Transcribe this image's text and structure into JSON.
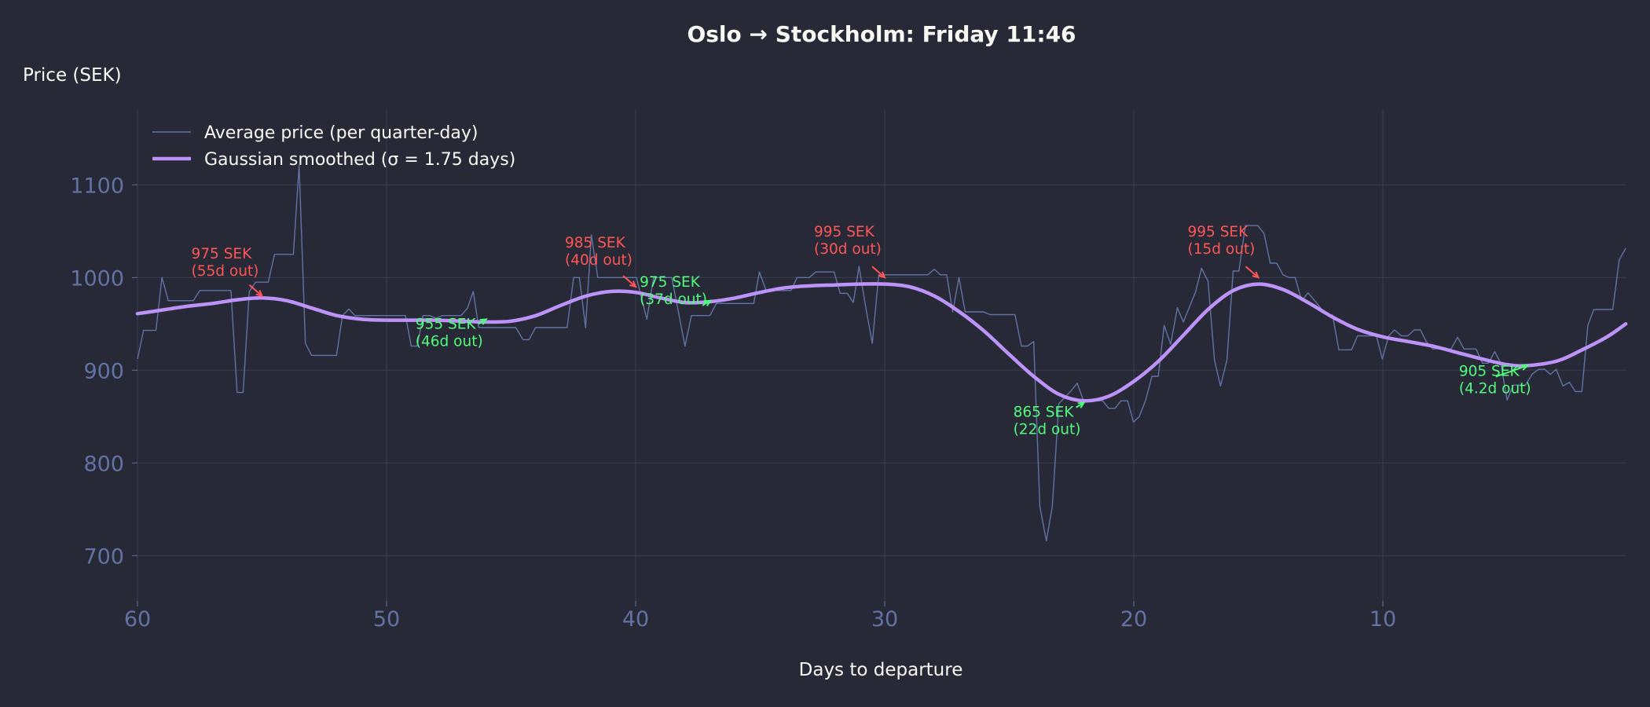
{
  "chart_data": {
    "type": "line",
    "title": "Oslo → Stockholm: Friday 11:46",
    "xlabel": "Days to departure",
    "ylabel": "Price (SEK)",
    "xlim": [
      60,
      0.25
    ],
    "ylim": [
      651,
      1181
    ],
    "x_inverted": true,
    "grid": true,
    "legend_position": "top-left",
    "xticks": [
      60,
      50,
      40,
      30,
      20,
      10
    ],
    "xtick_labels": [
      "60",
      "50",
      "40",
      "30",
      "20",
      "10"
    ],
    "yticks": [
      700,
      800,
      900,
      1000,
      1100
    ],
    "ytick_labels": [
      "700",
      "800",
      "900",
      "1000",
      "1100"
    ],
    "colors": {
      "background": "#272a36",
      "raw": "#6272a4",
      "smoothed": "#bd93f9",
      "peak": "#ff5555",
      "trough": "#50fa7b",
      "text": "#f8f8f2",
      "tick": "#6272a4",
      "grid": "#383c50"
    },
    "series": [
      {
        "name": "Average price (per quarter-day)",
        "legend_label": "Average price (per quarter-day)",
        "points": [
          [
            60.0,
            912
          ],
          [
            59.76,
            943
          ],
          [
            59.26,
            943
          ],
          [
            59.02,
            1000
          ],
          [
            58.76,
            975
          ],
          [
            57.76,
            975
          ],
          [
            57.5,
            986
          ],
          [
            56.25,
            986
          ],
          [
            56.0,
            876
          ],
          [
            55.76,
            876
          ],
          [
            55.51,
            985
          ],
          [
            55.26,
            995
          ],
          [
            54.75,
            995
          ],
          [
            54.5,
            1025
          ],
          [
            53.74,
            1025
          ],
          [
            53.51,
            1121
          ],
          [
            53.26,
            929
          ],
          [
            53.01,
            916
          ],
          [
            52.01,
            916
          ],
          [
            51.77,
            959
          ],
          [
            51.51,
            966
          ],
          [
            51.27,
            959
          ],
          [
            49.24,
            959
          ],
          [
            49.01,
            926
          ],
          [
            48.77,
            926
          ],
          [
            48.54,
            959
          ],
          [
            48.27,
            959
          ],
          [
            48.01,
            956
          ],
          [
            47.77,
            959
          ],
          [
            47.01,
            959
          ],
          [
            46.75,
            967
          ],
          [
            46.52,
            985
          ],
          [
            46.3,
            946
          ],
          [
            44.81,
            946
          ],
          [
            44.52,
            933
          ],
          [
            44.28,
            933
          ],
          [
            44.02,
            946
          ],
          [
            42.75,
            946
          ],
          [
            42.49,
            1000
          ],
          [
            42.26,
            1000
          ],
          [
            42.01,
            946
          ],
          [
            41.78,
            1046
          ],
          [
            41.52,
            1000
          ],
          [
            39.97,
            1000
          ],
          [
            39.55,
            955
          ],
          [
            39.28,
            1000
          ],
          [
            38.55,
            1000
          ],
          [
            38.02,
            926
          ],
          [
            37.76,
            959
          ],
          [
            37.02,
            959
          ],
          [
            36.76,
            972
          ],
          [
            35.26,
            972
          ],
          [
            35.03,
            1006
          ],
          [
            34.76,
            986
          ],
          [
            33.76,
            986
          ],
          [
            33.52,
            1000
          ],
          [
            33.03,
            1000
          ],
          [
            32.77,
            1006
          ],
          [
            32.03,
            1006
          ],
          [
            31.79,
            983
          ],
          [
            31.5,
            983
          ],
          [
            31.26,
            973
          ],
          [
            31.03,
            1012
          ],
          [
            30.77,
            969
          ],
          [
            30.5,
            929
          ],
          [
            30.24,
            1003
          ],
          [
            28.27,
            1003
          ],
          [
            28.01,
            1009
          ],
          [
            27.77,
            1003
          ],
          [
            27.51,
            1003
          ],
          [
            27.27,
            963
          ],
          [
            27.02,
            1000
          ],
          [
            26.77,
            963
          ],
          [
            26.04,
            963
          ],
          [
            25.77,
            960
          ],
          [
            24.77,
            960
          ],
          [
            24.51,
            926
          ],
          [
            24.27,
            926
          ],
          [
            24.02,
            931
          ],
          [
            23.77,
            753
          ],
          [
            23.51,
            716
          ],
          [
            23.27,
            753
          ],
          [
            23.01,
            864
          ],
          [
            22.51,
            878
          ],
          [
            22.27,
            886
          ],
          [
            22.02,
            867
          ],
          [
            21.25,
            867
          ],
          [
            21.01,
            859
          ],
          [
            20.75,
            859
          ],
          [
            20.51,
            867
          ],
          [
            20.25,
            867
          ],
          [
            20.01,
            844
          ],
          [
            19.78,
            850
          ],
          [
            19.52,
            868
          ],
          [
            19.27,
            893.5
          ],
          [
            19.02,
            893.5
          ],
          [
            18.78,
            948.5
          ],
          [
            18.52,
            928
          ],
          [
            18.25,
            967.5
          ],
          [
            18.01,
            952
          ],
          [
            17.52,
            984.5
          ],
          [
            17.28,
            1010
          ],
          [
            17.02,
            996
          ],
          [
            16.76,
            911
          ],
          [
            16.52,
            883
          ],
          [
            16.26,
            911
          ],
          [
            16.01,
            1007
          ],
          [
            15.78,
            1007
          ],
          [
            15.52,
            1056
          ],
          [
            15.02,
            1056
          ],
          [
            14.77,
            1047.5
          ],
          [
            14.52,
            1015.5
          ],
          [
            14.26,
            1015.5
          ],
          [
            14.01,
            1003
          ],
          [
            13.77,
            1000
          ],
          [
            13.52,
            1000
          ],
          [
            13.26,
            975
          ],
          [
            13.0,
            983.6
          ],
          [
            12.26,
            959.6
          ],
          [
            12.02,
            959.6
          ],
          [
            11.77,
            922
          ],
          [
            11.26,
            922
          ],
          [
            11.02,
            937
          ],
          [
            10.26,
            937
          ],
          [
            10.02,
            912
          ],
          [
            9.77,
            937
          ],
          [
            9.53,
            943.5
          ],
          [
            9.26,
            937
          ],
          [
            9.0,
            937
          ],
          [
            8.74,
            943.5
          ],
          [
            8.49,
            943.5
          ],
          [
            8.26,
            931
          ],
          [
            8.0,
            923
          ],
          [
            7.26,
            923
          ],
          [
            7.0,
            935.6
          ],
          [
            6.74,
            923
          ],
          [
            6.26,
            923
          ],
          [
            6.0,
            907.6
          ],
          [
            5.76,
            907.6
          ],
          [
            5.51,
            920
          ],
          [
            5.27,
            908
          ],
          [
            5.01,
            868
          ],
          [
            4.76,
            884
          ],
          [
            4.27,
            884
          ],
          [
            4.0,
            896
          ],
          [
            3.74,
            901
          ],
          [
            3.5,
            901
          ],
          [
            3.27,
            895.5
          ],
          [
            3.04,
            901
          ],
          [
            2.77,
            883
          ],
          [
            2.51,
            887
          ],
          [
            2.27,
            877
          ],
          [
            2.01,
            877
          ],
          [
            1.77,
            948.5
          ],
          [
            1.53,
            965.5
          ],
          [
            0.77,
            965.5
          ],
          [
            0.51,
            1019
          ],
          [
            0.25,
            1031.6
          ]
        ]
      },
      {
        "name": "Gaussian smoothed",
        "legend_label": "Gaussian smoothed (σ = 1.75 days)",
        "sigma_days": 1.75,
        "points": [
          [
            60,
            961
          ],
          [
            59,
            965
          ],
          [
            58,
            969
          ],
          [
            57,
            972
          ],
          [
            56,
            976
          ],
          [
            55,
            978
          ],
          [
            54,
            975
          ],
          [
            53,
            967
          ],
          [
            52,
            959
          ],
          [
            51,
            955
          ],
          [
            50,
            954
          ],
          [
            49,
            954
          ],
          [
            48,
            954
          ],
          [
            47,
            953
          ],
          [
            46,
            952
          ],
          [
            45,
            953
          ],
          [
            44,
            959
          ],
          [
            43,
            970
          ],
          [
            42,
            980
          ],
          [
            41,
            985
          ],
          [
            40,
            984
          ],
          [
            39,
            978
          ],
          [
            38,
            973
          ],
          [
            37,
            974
          ],
          [
            36,
            978
          ],
          [
            35,
            984
          ],
          [
            34,
            989
          ],
          [
            33,
            991
          ],
          [
            32,
            992
          ],
          [
            31,
            993
          ],
          [
            30,
            993
          ],
          [
            29,
            990
          ],
          [
            28,
            980
          ],
          [
            27,
            963
          ],
          [
            26,
            942
          ],
          [
            25,
            917
          ],
          [
            24,
            893
          ],
          [
            23,
            874
          ],
          [
            22,
            867
          ],
          [
            21,
            872
          ],
          [
            20,
            888
          ],
          [
            19,
            910
          ],
          [
            18,
            938
          ],
          [
            17,
            966
          ],
          [
            16,
            986
          ],
          [
            15,
            993
          ],
          [
            14,
            987
          ],
          [
            13,
            973
          ],
          [
            12,
            957
          ],
          [
            11,
            944
          ],
          [
            10,
            936
          ],
          [
            9,
            931
          ],
          [
            8,
            926
          ],
          [
            7,
            919
          ],
          [
            6,
            912
          ],
          [
            5,
            906
          ],
          [
            4.2,
            905
          ],
          [
            3,
            910
          ],
          [
            2,
            922
          ],
          [
            1,
            936
          ],
          [
            0.25,
            950
          ]
        ]
      }
    ],
    "annotations": [
      {
        "kind": "peak",
        "price": 975,
        "days": 55,
        "label_line1": "975 SEK",
        "label_line2": "(55d out)"
      },
      {
        "kind": "trough",
        "price": 955,
        "days": 46,
        "label_line1": "955 SEK",
        "label_line2": "(46d out)"
      },
      {
        "kind": "peak",
        "price": 985,
        "days": 40,
        "label_line1": "985 SEK",
        "label_line2": "(40d out)"
      },
      {
        "kind": "trough",
        "price": 975,
        "days": 37,
        "label_line1": "975 SEK",
        "label_line2": "(37d out)"
      },
      {
        "kind": "peak",
        "price": 995,
        "days": 30,
        "label_line1": "995 SEK",
        "label_line2": "(30d out)"
      },
      {
        "kind": "trough",
        "price": 865,
        "days": 22,
        "label_line1": "865 SEK",
        "label_line2": "(22d out)"
      },
      {
        "kind": "peak",
        "price": 995,
        "days": 15,
        "label_line1": "995 SEK",
        "label_line2": "(15d out)"
      },
      {
        "kind": "trough",
        "price": 905,
        "days": 4.2,
        "label_line1": "905 SEK",
        "label_line2": "(4.2d out)"
      }
    ]
  }
}
